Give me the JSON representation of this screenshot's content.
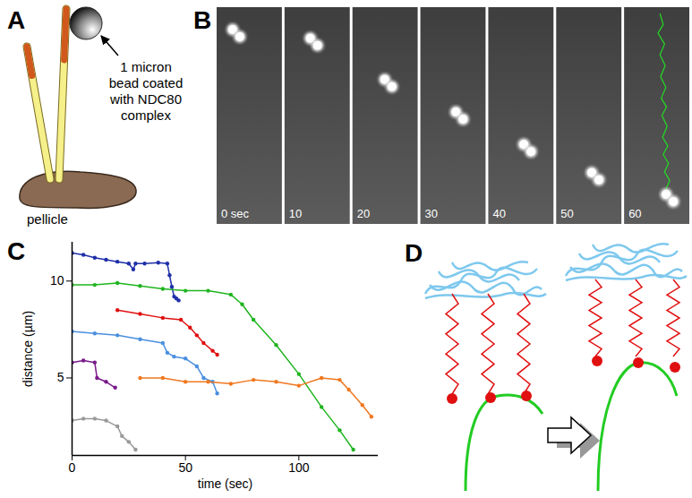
{
  "panel_labels": [
    "A",
    "B",
    "C",
    "D"
  ],
  "panel_a": {
    "bead_label": [
      "1 micron",
      "bead coated",
      "with NDC80",
      "complex"
    ],
    "base_label": "pellicle"
  },
  "panel_b": {
    "frame_labels": [
      "0 sec",
      "10",
      "20",
      "30",
      "40",
      "50",
      "60"
    ]
  },
  "chart_data": {
    "type": "line",
    "x_label": "time (sec)",
    "y_label": "distance (µm)",
    "xlim": [
      0,
      135
    ],
    "ylim": [
      1,
      12
    ],
    "xticks": [
      0,
      50,
      100
    ],
    "yticks": [
      5,
      10
    ],
    "grid": false,
    "marker": "circle",
    "series": [
      {
        "color": "#1f2fa8",
        "x": [
          0,
          5,
          10,
          15,
          20,
          25,
          27,
          28,
          32,
          38,
          42,
          43,
          44,
          45,
          46,
          47
        ],
        "values": [
          11.45,
          11.35,
          11.2,
          11.1,
          11.0,
          10.9,
          10.6,
          10.9,
          10.9,
          10.95,
          10.9,
          10.3,
          9.7,
          9.2,
          9.1,
          9.0
        ]
      },
      {
        "color": "#1fb51f",
        "x": [
          0,
          10,
          20,
          30,
          40,
          50,
          60,
          70,
          75,
          80,
          90,
          100,
          110,
          118,
          124
        ],
        "values": [
          9.8,
          9.8,
          9.9,
          9.75,
          9.6,
          9.5,
          9.5,
          9.3,
          8.8,
          8.0,
          6.7,
          5.2,
          3.5,
          2.3,
          1.3
        ]
      },
      {
        "color": "#e01010",
        "x": [
          20,
          30,
          40,
          48,
          52,
          55,
          58,
          62,
          64
        ],
        "values": [
          8.5,
          8.3,
          8.1,
          8.0,
          7.6,
          7.2,
          6.8,
          6.4,
          6.2
        ]
      },
      {
        "color": "#4a8fe0",
        "x": [
          0,
          10,
          20,
          30,
          40,
          42,
          45,
          50,
          55,
          58,
          62,
          64
        ],
        "values": [
          7.4,
          7.3,
          7.2,
          7.0,
          6.8,
          6.3,
          6.1,
          6.0,
          5.6,
          5.0,
          4.8,
          4.2
        ]
      },
      {
        "color": "#7a1a8a",
        "x": [
          0,
          5,
          10,
          11,
          15,
          19
        ],
        "values": [
          5.8,
          5.9,
          5.8,
          5.0,
          4.8,
          4.5
        ]
      },
      {
        "color": "#f07820",
        "x": [
          30,
          40,
          50,
          60,
          70,
          80,
          90,
          100,
          110,
          118,
          122,
          128,
          132
        ],
        "values": [
          5.0,
          5.0,
          4.8,
          4.8,
          4.7,
          4.9,
          4.8,
          4.6,
          5.0,
          4.9,
          4.4,
          3.6,
          3.0
        ]
      },
      {
        "color": "#999999",
        "x": [
          0,
          5,
          10,
          15,
          20,
          22,
          25,
          28
        ],
        "values": [
          2.8,
          2.9,
          2.9,
          2.8,
          2.5,
          2.0,
          1.7,
          1.3
        ]
      }
    ]
  }
}
